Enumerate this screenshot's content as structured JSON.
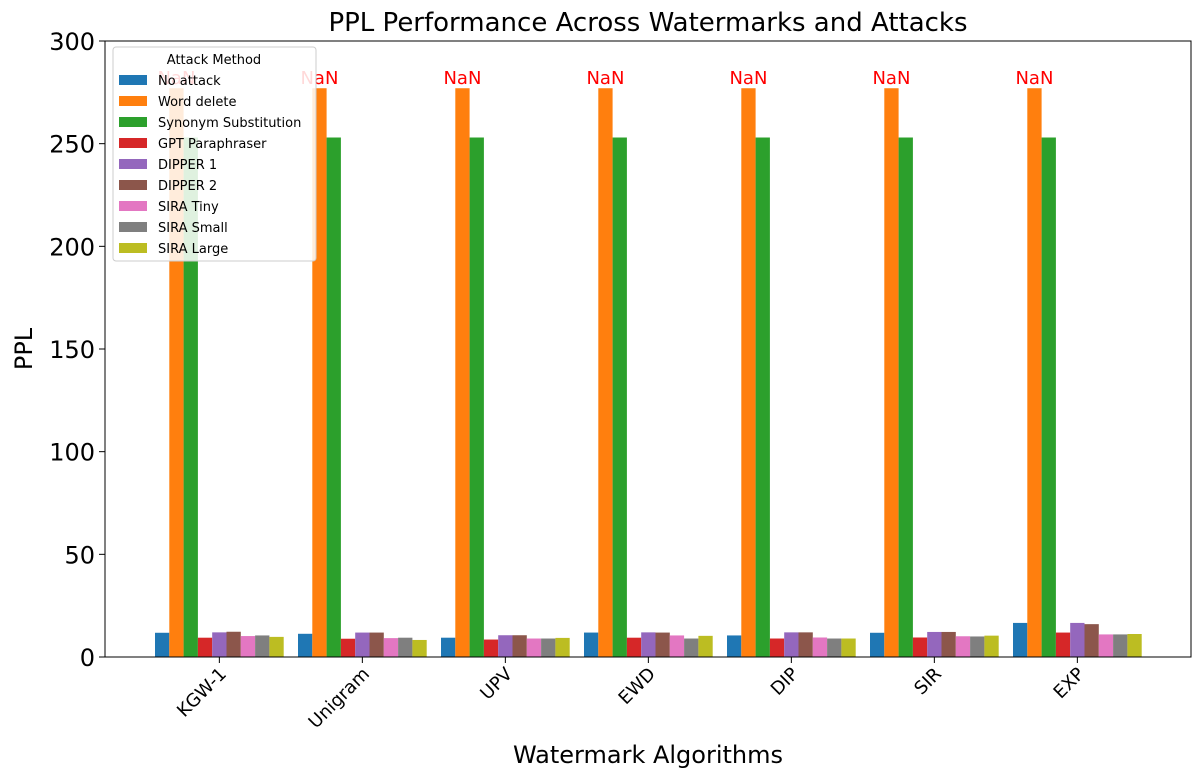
{
  "chart_data": {
    "type": "bar",
    "title": "PPL Performance Across Watermarks and Attacks",
    "xlabel": "Watermark Algorithms",
    "ylabel": "PPL",
    "ylim": [
      0,
      300
    ],
    "yticks": [
      0,
      50,
      100,
      150,
      200,
      250,
      300
    ],
    "categories": [
      "KGW-1",
      "Unigram",
      "UPV",
      "EWD",
      "DIP",
      "SIR",
      "EXP"
    ],
    "legend": {
      "title": "Attack Method",
      "location": "top-left"
    },
    "annotation_text": "NaN",
    "annotation_color": "#ff0000",
    "series": [
      {
        "name": "No attack",
        "color": "#1f77b4",
        "values": [
          11.8,
          11.3,
          9.4,
          11.9,
          10.5,
          11.8,
          16.6
        ]
      },
      {
        "name": "Word delete",
        "color": "#ff7f0e",
        "values": [
          277,
          277,
          277,
          277,
          277,
          277,
          277
        ]
      },
      {
        "name": "Synonym Substitution",
        "color": "#2ca02c",
        "values": [
          253,
          253,
          253,
          253,
          253,
          253,
          253
        ]
      },
      {
        "name": "GPT Paraphraser",
        "color": "#d62728",
        "values": [
          9.4,
          8.9,
          8.5,
          9.4,
          9.0,
          9.5,
          11.9
        ]
      },
      {
        "name": "DIPPER 1",
        "color": "#9467bd",
        "values": [
          12.0,
          11.9,
          10.6,
          12.0,
          12.0,
          12.2,
          16.6
        ]
      },
      {
        "name": "DIPPER 2",
        "color": "#8c564b",
        "values": [
          12.3,
          11.9,
          10.6,
          11.9,
          12.0,
          12.2,
          16.0
        ]
      },
      {
        "name": "SIRA Tiny",
        "color": "#e377c2",
        "values": [
          10.2,
          9.2,
          9.0,
          10.5,
          9.5,
          10.1,
          11.0
        ]
      },
      {
        "name": "SIRA Small",
        "color": "#7f7f7f",
        "values": [
          10.5,
          9.4,
          9.0,
          9.0,
          9.0,
          10.0,
          11.0
        ]
      },
      {
        "name": "SIRA Large",
        "color": "#bcbd22",
        "values": [
          9.8,
          8.3,
          9.3,
          10.3,
          9.0,
          10.4,
          11.2
        ]
      }
    ]
  }
}
